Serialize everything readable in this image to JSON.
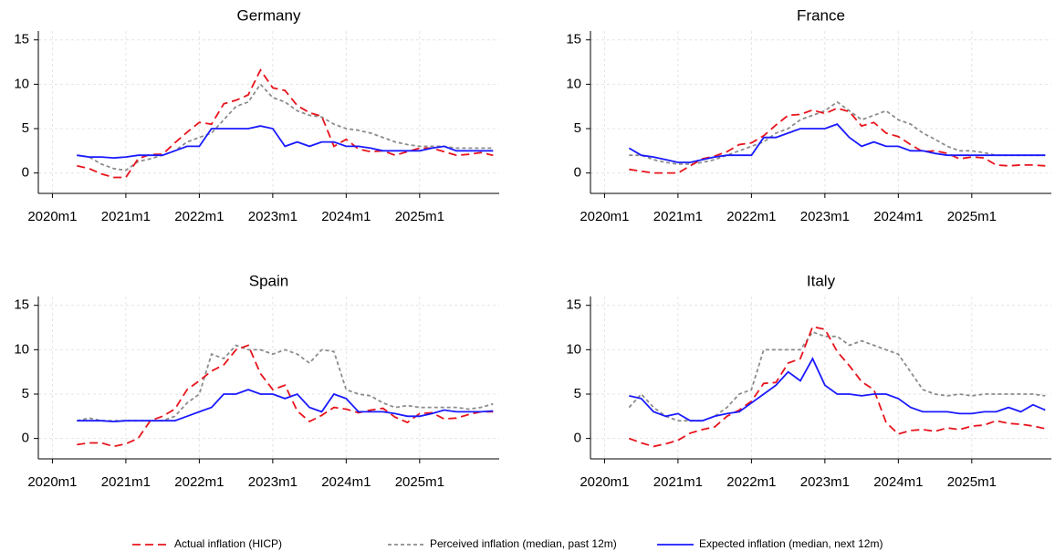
{
  "chart_data": [
    {
      "type": "line",
      "title": "Germany",
      "x": [
        724,
        726,
        728,
        730,
        732,
        734,
        736,
        738,
        740,
        742,
        744,
        746,
        748,
        750,
        752,
        754,
        756,
        758,
        760,
        762,
        764,
        766,
        768,
        770,
        772,
        774,
        776,
        778,
        780,
        782,
        784,
        786,
        788,
        790,
        792
      ],
      "xlim": [
        717.7,
        793
      ],
      "xticks": [
        {
          "value": 720,
          "label": "2020m1"
        },
        {
          "value": 732,
          "label": "2021m1"
        },
        {
          "value": 744,
          "label": "2022m1"
        },
        {
          "value": 756,
          "label": "2023m1"
        },
        {
          "value": 768,
          "label": "2024m1"
        },
        {
          "value": 780,
          "label": "2025m1"
        }
      ],
      "ylim": [
        -2.3,
        16
      ],
      "yticks": [
        0,
        5,
        10,
        15
      ],
      "grid": true,
      "series": [
        {
          "values": [
            0.8,
            0.5,
            -0.1,
            -0.5,
            -0.5,
            1.6,
            2.1,
            2.1,
            3.4,
            4.6,
            5.7,
            5.5,
            7.8,
            8.2,
            8.8,
            11.6,
            9.6,
            9.3,
            7.6,
            6.8,
            6.4,
            3.0,
            3.8,
            2.7,
            2.4,
            2.5,
            2.0,
            2.4,
            2.8,
            2.8,
            2.4,
            2.0,
            2.1,
            2.3,
            2.0
          ]
        },
        {
          "values": [
            2.0,
            1.8,
            1.0,
            0.5,
            0.3,
            1.3,
            1.6,
            2.0,
            2.5,
            3.5,
            4.0,
            4.5,
            6.0,
            7.5,
            8.0,
            10.0,
            8.5,
            8.0,
            7.0,
            6.5,
            6.3,
            5.5,
            5.0,
            4.8,
            4.5,
            4.0,
            3.5,
            3.2,
            3.0,
            3.0,
            3.0,
            2.8,
            2.8,
            2.8,
            2.8
          ]
        },
        {
          "values": [
            2.0,
            1.8,
            1.8,
            1.7,
            1.8,
            2.0,
            2.0,
            2.0,
            2.5,
            3.0,
            3.0,
            5.0,
            5.0,
            5.0,
            5.0,
            5.3,
            5.0,
            3.0,
            3.5,
            3.0,
            3.5,
            3.5,
            3.0,
            3.0,
            2.8,
            2.5,
            2.5,
            2.5,
            2.5,
            2.8,
            3.0,
            2.5,
            2.5,
            2.5,
            2.5
          ]
        }
      ]
    },
    {
      "type": "line",
      "title": "France",
      "x": [
        724,
        726,
        728,
        730,
        732,
        734,
        736,
        738,
        740,
        742,
        744,
        746,
        748,
        750,
        752,
        754,
        756,
        758,
        760,
        762,
        764,
        766,
        768,
        770,
        772,
        774,
        776,
        778,
        780,
        782,
        784,
        786,
        788,
        790,
        792
      ],
      "xlim": [
        717.7,
        793
      ],
      "xticks": [
        {
          "value": 720,
          "label": "2020m1"
        },
        {
          "value": 732,
          "label": "2021m1"
        },
        {
          "value": 744,
          "label": "2022m1"
        },
        {
          "value": 756,
          "label": "2023m1"
        },
        {
          "value": 768,
          "label": "2024m1"
        },
        {
          "value": 780,
          "label": "2025m1"
        }
      ],
      "ylim": [
        -2.3,
        16
      ],
      "yticks": [
        0,
        5,
        10,
        15
      ],
      "grid": true,
      "series": [
        {
          "values": [
            0.4,
            0.2,
            0.0,
            0.0,
            0.0,
            0.8,
            1.6,
            1.9,
            2.4,
            3.2,
            3.4,
            4.2,
            5.4,
            6.5,
            6.6,
            7.1,
            6.7,
            7.3,
            6.9,
            5.3,
            5.7,
            4.5,
            4.1,
            3.2,
            2.4,
            2.5,
            2.2,
            1.6,
            1.8,
            1.7,
            0.9,
            0.8,
            0.9,
            0.9,
            0.8
          ]
        },
        {
          "values": [
            2.0,
            2.0,
            1.5,
            1.2,
            1.0,
            1.0,
            1.2,
            1.5,
            2.0,
            2.5,
            3.0,
            3.5,
            4.5,
            5.0,
            6.0,
            6.5,
            7.0,
            8.0,
            7.0,
            6.0,
            6.5,
            7.0,
            6.0,
            5.5,
            4.5,
            3.8,
            3.0,
            2.5,
            2.5,
            2.3,
            2.0,
            2.0,
            2.0,
            2.0,
            2.0
          ]
        },
        {
          "values": [
            2.8,
            2.0,
            1.8,
            1.5,
            1.2,
            1.2,
            1.5,
            1.8,
            2.0,
            2.0,
            2.0,
            4.0,
            4.0,
            4.5,
            5.0,
            5.0,
            5.0,
            5.5,
            4.0,
            3.0,
            3.5,
            3.0,
            3.0,
            2.5,
            2.5,
            2.2,
            2.0,
            2.0,
            2.0,
            2.0,
            2.0,
            2.0,
            2.0,
            2.0,
            2.0
          ]
        }
      ]
    },
    {
      "type": "line",
      "title": "Spain",
      "x": [
        724,
        726,
        728,
        730,
        732,
        734,
        736,
        738,
        740,
        742,
        744,
        746,
        748,
        750,
        752,
        754,
        756,
        758,
        760,
        762,
        764,
        766,
        768,
        770,
        772,
        774,
        776,
        778,
        780,
        782,
        784,
        786,
        788,
        790,
        792
      ],
      "xlim": [
        717.7,
        793
      ],
      "xticks": [
        {
          "value": 720,
          "label": "2020m1"
        },
        {
          "value": 732,
          "label": "2021m1"
        },
        {
          "value": 744,
          "label": "2022m1"
        },
        {
          "value": 756,
          "label": "2023m1"
        },
        {
          "value": 768,
          "label": "2024m1"
        },
        {
          "value": 780,
          "label": "2025m1"
        }
      ],
      "ylim": [
        -2.3,
        16
      ],
      "yticks": [
        0,
        5,
        10,
        15
      ],
      "grid": true,
      "series": [
        {
          "values": [
            -0.7,
            -0.5,
            -0.5,
            -0.9,
            -0.6,
            0.0,
            2.0,
            2.5,
            3.3,
            5.5,
            6.5,
            7.6,
            8.3,
            10.0,
            10.5,
            7.3,
            5.5,
            6.0,
            3.1,
            1.9,
            2.6,
            3.5,
            3.3,
            2.9,
            3.2,
            3.4,
            2.4,
            1.8,
            2.8,
            2.9,
            2.2,
            2.3,
            2.7,
            3.0,
            3.0
          ]
        },
        {
          "values": [
            2.0,
            2.3,
            2.0,
            2.0,
            2.0,
            2.0,
            2.0,
            2.0,
            2.5,
            4.0,
            5.0,
            9.5,
            9.0,
            10.5,
            10.0,
            10.0,
            9.5,
            10.0,
            9.5,
            8.5,
            10.0,
            9.8,
            5.5,
            5.0,
            4.8,
            4.0,
            3.5,
            3.7,
            3.5,
            3.5,
            3.5,
            3.5,
            3.3,
            3.5,
            3.9
          ]
        },
        {
          "values": [
            2.0,
            2.0,
            2.0,
            1.9,
            2.0,
            2.0,
            2.0,
            2.0,
            2.0,
            2.5,
            3.0,
            3.5,
            5.0,
            5.0,
            5.5,
            5.0,
            5.0,
            4.5,
            5.0,
            3.5,
            3.0,
            5.0,
            4.5,
            3.0,
            3.0,
            3.0,
            2.8,
            2.5,
            2.5,
            2.8,
            3.2,
            3.0,
            3.0,
            3.0,
            3.1
          ]
        }
      ]
    },
    {
      "type": "line",
      "title": "Italy",
      "x": [
        724,
        726,
        728,
        730,
        732,
        734,
        736,
        738,
        740,
        742,
        744,
        746,
        748,
        750,
        752,
        754,
        756,
        758,
        760,
        762,
        764,
        766,
        768,
        770,
        772,
        774,
        776,
        778,
        780,
        782,
        784,
        786,
        788,
        790,
        792
      ],
      "xlim": [
        717.7,
        793
      ],
      "xticks": [
        {
          "value": 720,
          "label": "2020m1"
        },
        {
          "value": 732,
          "label": "2021m1"
        },
        {
          "value": 744,
          "label": "2022m1"
        },
        {
          "value": 756,
          "label": "2023m1"
        },
        {
          "value": 768,
          "label": "2024m1"
        },
        {
          "value": 780,
          "label": "2025m1"
        }
      ],
      "ylim": [
        -2.3,
        16
      ],
      "yticks": [
        0,
        5,
        10,
        15
      ],
      "grid": true,
      "series": [
        {
          "values": [
            0.0,
            -0.5,
            -0.9,
            -0.6,
            -0.2,
            0.6,
            1.0,
            1.3,
            2.5,
            3.2,
            4.2,
            6.2,
            6.3,
            8.5,
            9.0,
            12.6,
            12.3,
            9.8,
            8.2,
            6.4,
            5.5,
            1.8,
            0.5,
            0.9,
            1.0,
            0.8,
            1.2,
            1.0,
            1.4,
            1.5,
            2.0,
            1.7,
            1.6,
            1.4,
            1.1
          ]
        },
        {
          "values": [
            3.5,
            5.0,
            3.5,
            2.5,
            2.0,
            2.0,
            2.0,
            2.5,
            3.5,
            5.0,
            5.5,
            10.0,
            10.0,
            10.0,
            10.0,
            12.0,
            11.5,
            11.5,
            10.5,
            11.0,
            10.5,
            10.0,
            9.5,
            7.5,
            5.5,
            5.0,
            4.8,
            5.0,
            4.8,
            5.0,
            5.0,
            5.0,
            5.0,
            5.0,
            4.8
          ]
        },
        {
          "values": [
            4.8,
            4.5,
            3.0,
            2.5,
            2.8,
            2.0,
            2.0,
            2.5,
            2.8,
            3.0,
            4.0,
            5.0,
            6.0,
            7.5,
            6.5,
            9.0,
            6.0,
            5.0,
            5.0,
            4.8,
            5.0,
            5.0,
            4.5,
            3.5,
            3.0,
            3.0,
            3.0,
            2.8,
            2.8,
            3.0,
            3.0,
            3.5,
            3.0,
            3.8,
            3.2
          ]
        }
      ]
    }
  ],
  "legend": [
    {
      "name": "Actual inflation (HICP)",
      "color": "#e8141c",
      "style": "dash"
    },
    {
      "name": "Perceived inflation (median, past 12m)",
      "color": "#8c8c8c",
      "style": "shortdash"
    },
    {
      "name": "Expected inflation (median, next 12m)",
      "color": "#1a1aff",
      "style": "solid"
    }
  ]
}
